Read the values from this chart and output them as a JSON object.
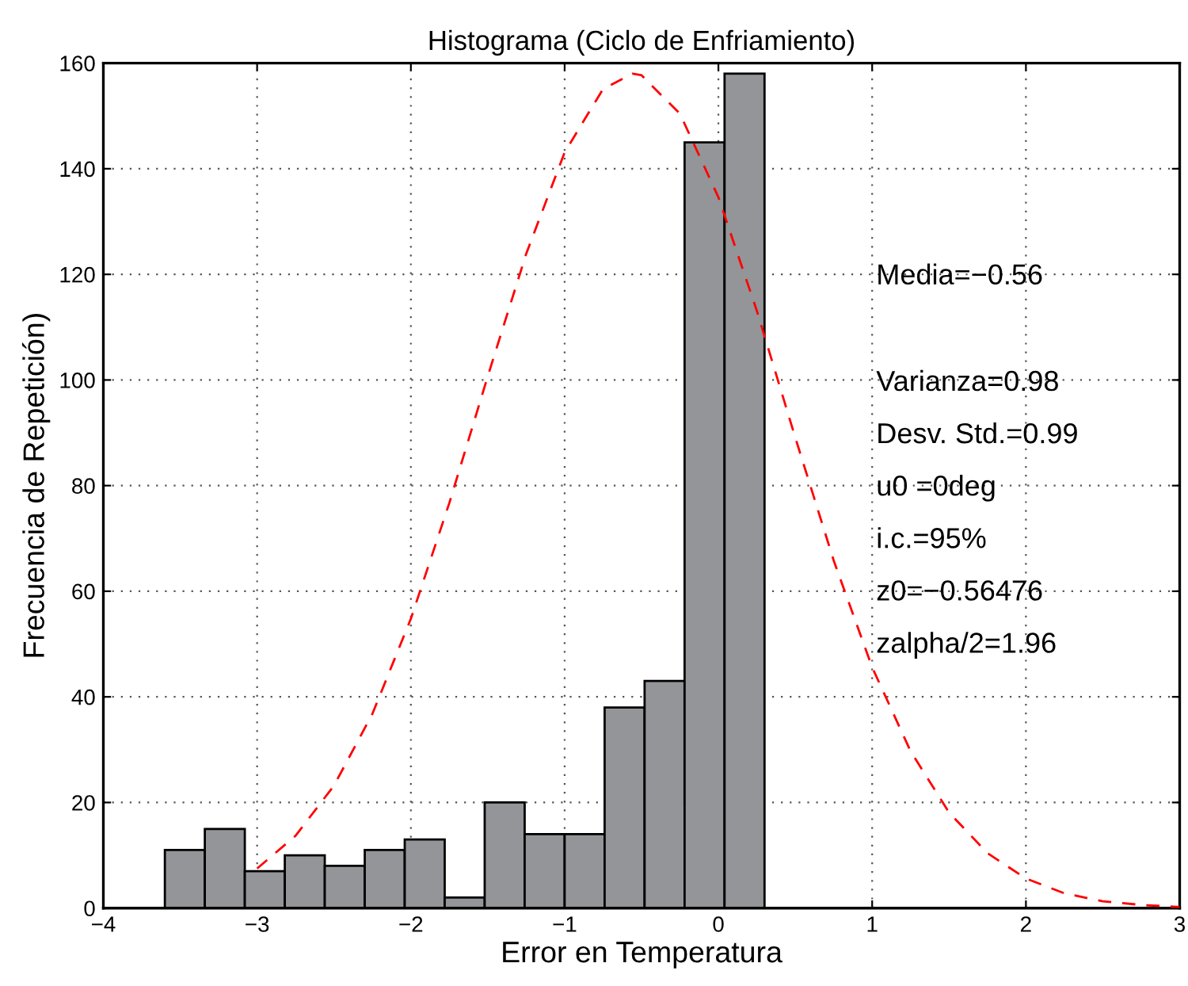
{
  "chart_data": {
    "type": "histogram",
    "title": "Histograma (Ciclo de Enfriamiento)",
    "xlabel": "Error en Temperatura",
    "ylabel": "Frecuencia de Repetición)",
    "series": [
      {
        "color": "#939598",
        "bins": [
          -3.6,
          -3.34,
          -3.08,
          -2.82,
          -2.56,
          -2.3,
          -2.04,
          -1.78,
          -1.52,
          -1.26,
          -1.0,
          -0.74,
          -0.48,
          -0.22,
          0.04,
          0.3
        ],
        "values": [
          11,
          15,
          7,
          10,
          8,
          11,
          13,
          2,
          20,
          14,
          14,
          38,
          43,
          145,
          158
        ]
      },
      {
        "type": "line",
        "color": "#ff0000",
        "line_style": "dashed",
        "x": [
          -3,
          -2.75,
          -2.5,
          -2.25,
          -2,
          -1.75,
          -1.5,
          -1.25,
          -1,
          -0.75,
          -0.56,
          -0.5,
          -0.25,
          0,
          0.25,
          0.5,
          0.75,
          1,
          1.25,
          1.5,
          1.75,
          2,
          2.25,
          2.5,
          2.75,
          3
        ],
        "values": [
          7.5,
          13.7,
          23.2,
          36.8,
          54.8,
          76.7,
          100.7,
          123.9,
          143.1,
          155.1,
          158,
          157.7,
          150.4,
          134.6,
          113.1,
          89.1,
          65.8,
          45.6,
          29.7,
          18.1,
          10.4,
          5.6,
          2.8,
          1.3,
          0.6,
          0.2
        ]
      }
    ],
    "xlim": [
      -4,
      3
    ],
    "xticks": [
      {
        "value": -4,
        "label": "−4"
      },
      {
        "value": -3,
        "label": "−3"
      },
      {
        "value": -2,
        "label": "−2"
      },
      {
        "value": -1,
        "label": "−1"
      },
      0,
      1,
      2,
      3
    ],
    "ylim": [
      0,
      160
    ],
    "yticks": [
      0,
      20,
      40,
      60,
      80,
      100,
      120,
      140,
      160
    ],
    "grid": true,
    "annotations": [
      "Media=−0.56",
      "Varianza=0.98",
      "Desv. Std.=0.99",
      "u0 =0deg",
      "i.c.=95%",
      "z0=−0.56476",
      "zalpha/2=1.96"
    ]
  }
}
